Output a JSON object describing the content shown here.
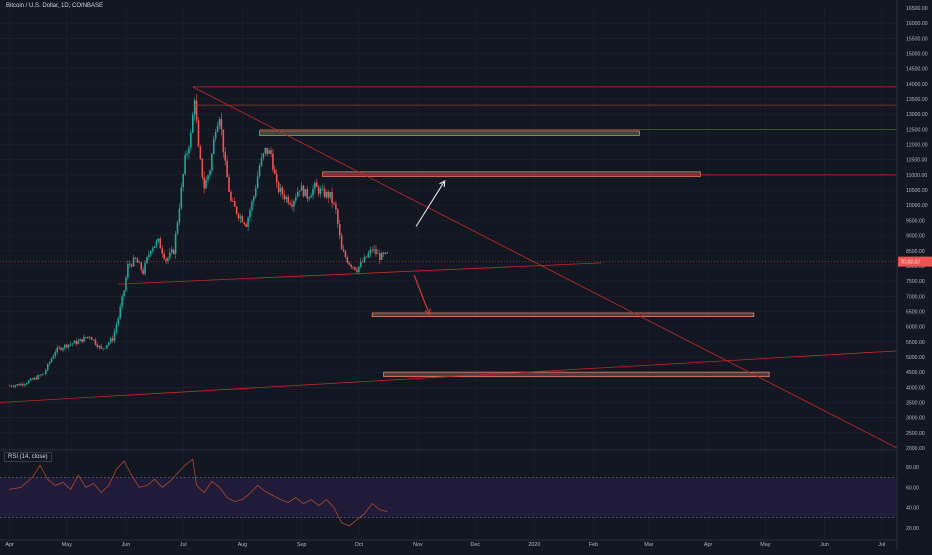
{
  "title": "Bitcoin / U.S. Dollar, 1D, COINBASE",
  "colors": {
    "background": "#131722",
    "grid": "#1e222d",
    "up": "#26a69a",
    "down": "#ef5350",
    "trendline": "#c62828",
    "zone_fill": "#8d6e63",
    "zone_stroke": "#ff8a65",
    "rsi_line": "#b0452a",
    "rsi_band": "#2a1f4a",
    "price_tag": "#ef5350"
  },
  "chart_data": [
    {
      "type": "candlestick",
      "title": "Bitcoin / U.S. Dollar, 1D, COINBASE",
      "price_axis": {
        "min": 2000,
        "max": 16500,
        "ticks": [
          "16500.00",
          "16000.00",
          "15500.00",
          "15000.00",
          "14500.00",
          "14000.00",
          "13500.00",
          "13000.00",
          "12500.00",
          "12000.00",
          "11500.00",
          "11000.00",
          "10500.00",
          "10000.00",
          "9500.00",
          "9000.00",
          "8500.00",
          "8000.00",
          "7500.00",
          "7000.00",
          "6500.00",
          "6000.00",
          "5500.00",
          "5000.00",
          "4500.00",
          "4000.00",
          "3500.00",
          "3000.00",
          "2500.00",
          "2000.00"
        ],
        "last_price_label": "8142.67",
        "last_price": 8142.67
      },
      "time_axis": {
        "ticks": [
          "Apr",
          "May",
          "Jun",
          "Jul",
          "Aug",
          "Sep",
          "Oct",
          "Nov",
          "Dec",
          "2020",
          "Feb",
          "Mar",
          "Apr",
          "May",
          "Jun",
          "Jul"
        ],
        "tick_days": [
          0,
          30,
          61,
          91,
          122,
          153,
          183,
          214,
          244,
          275,
          306,
          335,
          366,
          396,
          427,
          457
        ],
        "day_range": [
          -5,
          465
        ]
      },
      "price_path": [
        [
          0,
          4050
        ],
        [
          6,
          4100
        ],
        [
          12,
          4250
        ],
        [
          18,
          4450
        ],
        [
          24,
          5200
        ],
        [
          30,
          5400
        ],
        [
          36,
          5500
        ],
        [
          42,
          5700
        ],
        [
          48,
          5250
        ],
        [
          54,
          5600
        ],
        [
          57,
          6300
        ],
        [
          60,
          7200
        ],
        [
          62,
          8000
        ],
        [
          66,
          8200
        ],
        [
          70,
          7800
        ],
        [
          74,
          8600
        ],
        [
          78,
          8800
        ],
        [
          82,
          8200
        ],
        [
          86,
          8500
        ],
        [
          89,
          10000
        ],
        [
          92,
          11500
        ],
        [
          95,
          12300
        ],
        [
          97,
          13600
        ],
        [
          99,
          11800
        ],
        [
          102,
          10600
        ],
        [
          105,
          11200
        ],
        [
          108,
          12600
        ],
        [
          110,
          13000
        ],
        [
          113,
          11300
        ],
        [
          116,
          10100
        ],
        [
          120,
          9700
        ],
        [
          124,
          9400
        ],
        [
          128,
          10300
        ],
        [
          131,
          11300
        ],
        [
          134,
          11800
        ],
        [
          137,
          11700
        ],
        [
          140,
          10600
        ],
        [
          144,
          10300
        ],
        [
          148,
          10100
        ],
        [
          152,
          10600
        ],
        [
          156,
          10300
        ],
        [
          160,
          10600
        ],
        [
          164,
          10400
        ],
        [
          168,
          10300
        ],
        [
          171,
          9800
        ],
        [
          174,
          8500
        ],
        [
          178,
          8100
        ],
        [
          182,
          7900
        ],
        [
          186,
          8200
        ],
        [
          190,
          8550
        ],
        [
          194,
          8300
        ],
        [
          198,
          8350
        ]
      ],
      "trendlines": [
        {
          "from": [
            96,
            13900
          ],
          "to": [
            465,
            2000
          ]
        },
        {
          "from": [
            57,
            7400
          ],
          "to": [
            310,
            8100
          ]
        },
        {
          "from": [
            -5,
            3500
          ],
          "to": [
            465,
            5200
          ]
        },
        {
          "from": [
            96,
            13900
          ],
          "to": [
            465,
            13900
          ]
        },
        {
          "from": [
            96,
            13300
          ],
          "to": [
            465,
            13300
          ]
        },
        {
          "from": [
            131,
            12500
          ],
          "to": [
            465,
            12500
          ]
        },
        {
          "from": [
            164,
            11000
          ],
          "to": [
            465,
            11000
          ]
        }
      ],
      "zones": [
        {
          "from_day": 131,
          "to_day": 330,
          "low": 12300,
          "high": 12450
        },
        {
          "from_day": 164,
          "to_day": 362,
          "low": 10950,
          "high": 11100
        },
        {
          "from_day": 190,
          "to_day": 390,
          "low": 6330,
          "high": 6450
        },
        {
          "from_day": 196,
          "to_day": 398,
          "low": 4350,
          "high": 4500
        }
      ],
      "arrows": [
        {
          "from": [
            213,
            9300
          ],
          "to": [
            228,
            10800
          ],
          "direction": "up"
        },
        {
          "from": [
            212,
            7700
          ],
          "to": [
            220,
            6400
          ],
          "direction": "down"
        }
      ]
    },
    {
      "type": "line",
      "title": "RSI (14, close)",
      "y_axis": {
        "min": 10,
        "max": 95,
        "ticks": [
          "80.00",
          "60.00",
          "40.00",
          "20.00"
        ],
        "tick_values": [
          80,
          60,
          40,
          20
        ]
      },
      "band": [
        30,
        70
      ],
      "x_days": [
        0,
        6,
        12,
        16,
        20,
        24,
        28,
        32,
        36,
        40,
        44,
        48,
        52,
        56,
        60,
        64,
        68,
        72,
        76,
        80,
        84,
        88,
        92,
        96,
        98,
        102,
        106,
        110,
        114,
        118,
        122,
        126,
        130,
        134,
        138,
        142,
        146,
        150,
        154,
        158,
        162,
        166,
        170,
        174,
        178,
        182,
        186,
        190,
        194,
        198
      ],
      "values": [
        58,
        60,
        70,
        82,
        68,
        62,
        65,
        58,
        72,
        60,
        64,
        55,
        62,
        78,
        86,
        72,
        60,
        62,
        68,
        60,
        66,
        74,
        82,
        88,
        62,
        55,
        66,
        60,
        50,
        46,
        48,
        54,
        62,
        56,
        52,
        48,
        45,
        50,
        44,
        48,
        42,
        48,
        40,
        25,
        22,
        28,
        34,
        44,
        38,
        36
      ]
    }
  ],
  "rsi_label": "RSI (14, close)"
}
